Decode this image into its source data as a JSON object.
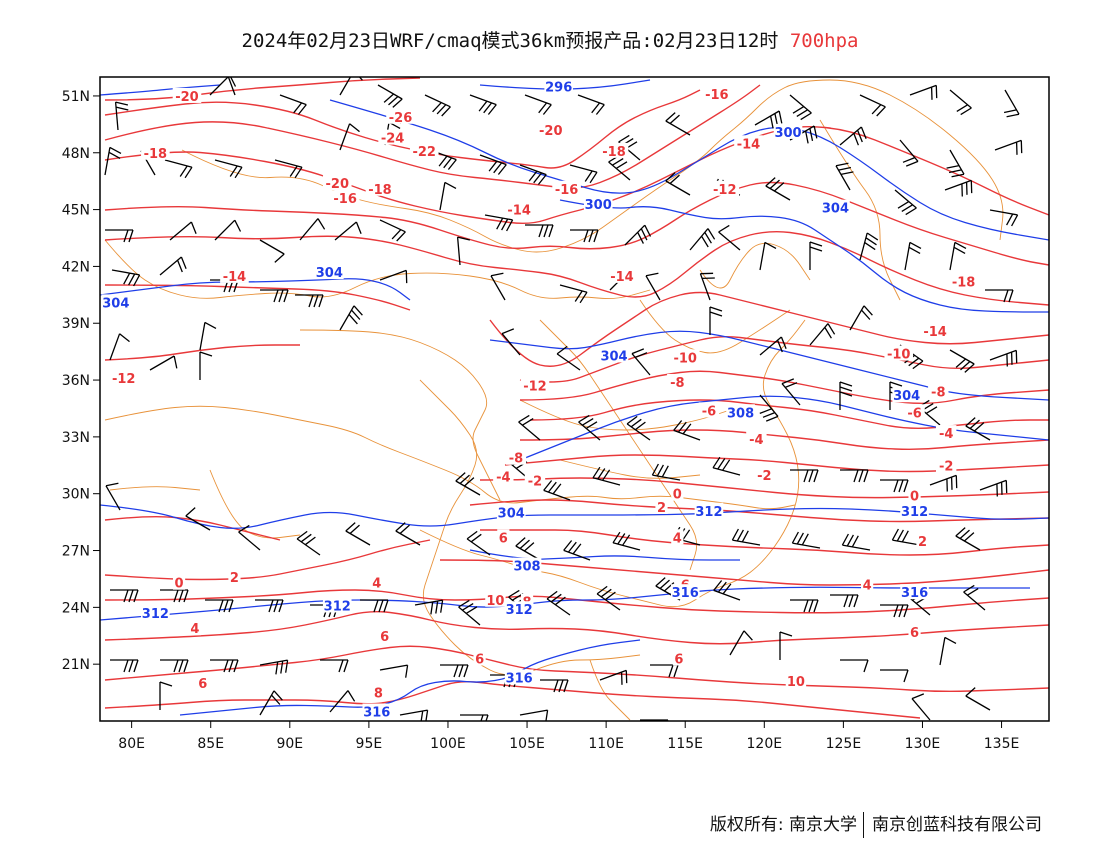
{
  "title": {
    "main": "2024年02月23日WRF/cmaq模式36km预报产品:02月23日12时",
    "level": "700hpa"
  },
  "colors": {
    "temperature": "#e8383a",
    "height": "#1f3ee8",
    "border": "#e8923a",
    "wind": "#000000"
  },
  "axes": {
    "lat_ticks": [
      "51N",
      "48N",
      "45N",
      "42N",
      "39N",
      "36N",
      "33N",
      "30N",
      "27N",
      "24N",
      "21N"
    ],
    "lon_ticks": [
      "80E",
      "85E",
      "90E",
      "95E",
      "100E",
      "105E",
      "110E",
      "115E",
      "120E",
      "125E",
      "130E",
      "135E"
    ]
  },
  "contour_labels": {
    "temperature": [
      {
        "text": "-20",
        "lon": 83.5,
        "lat": 51
      },
      {
        "text": "-18",
        "lon": 81.5,
        "lat": 48
      },
      {
        "text": "-12",
        "lon": 79.5,
        "lat": 36.1
      },
      {
        "text": "-14",
        "lon": 86.5,
        "lat": 41.5
      },
      {
        "text": "-26",
        "lon": 97,
        "lat": 49.9
      },
      {
        "text": "-24",
        "lon": 96.5,
        "lat": 48.8
      },
      {
        "text": "-22",
        "lon": 98.5,
        "lat": 48.1
      },
      {
        "text": "-20",
        "lon": 93,
        "lat": 46.4
      },
      {
        "text": "-18",
        "lon": 95.7,
        "lat": 46.1
      },
      {
        "text": "-16",
        "lon": 93.5,
        "lat": 45.6
      },
      {
        "text": "-14",
        "lon": 104.5,
        "lat": 45
      },
      {
        "text": "-20",
        "lon": 106.5,
        "lat": 49.2
      },
      {
        "text": "-18",
        "lon": 110.5,
        "lat": 48.1
      },
      {
        "text": "-16",
        "lon": 107.5,
        "lat": 46.1
      },
      {
        "text": "-16",
        "lon": 117,
        "lat": 51.1
      },
      {
        "text": "-14",
        "lon": 119,
        "lat": 48.5
      },
      {
        "text": "-12",
        "lon": 117.5,
        "lat": 46.1
      },
      {
        "text": "-14",
        "lon": 111,
        "lat": 41.5
      },
      {
        "text": "-10",
        "lon": 115,
        "lat": 37.2
      },
      {
        "text": "-12",
        "lon": 105.5,
        "lat": 35.7
      },
      {
        "text": "-8",
        "lon": 114.5,
        "lat": 35.9
      },
      {
        "text": "-6",
        "lon": 116.5,
        "lat": 34.4
      },
      {
        "text": "-4",
        "lon": 119.5,
        "lat": 32.9
      },
      {
        "text": "-2",
        "lon": 120,
        "lat": 31
      },
      {
        "text": "-8",
        "lon": 104.3,
        "lat": 31.9
      },
      {
        "text": "-4",
        "lon": 103.5,
        "lat": 30.9
      },
      {
        "text": "-2",
        "lon": 105.5,
        "lat": 30.7
      },
      {
        "text": "-18",
        "lon": 132.6,
        "lat": 41.2
      },
      {
        "text": "-14",
        "lon": 130.8,
        "lat": 38.6
      },
      {
        "text": "-10",
        "lon": 128.5,
        "lat": 37.4
      },
      {
        "text": "-8",
        "lon": 131,
        "lat": 35.4
      },
      {
        "text": "-6",
        "lon": 129.5,
        "lat": 34.3
      },
      {
        "text": "-4",
        "lon": 131.5,
        "lat": 33.2
      },
      {
        "text": "-2",
        "lon": 131.5,
        "lat": 31.5
      },
      {
        "text": "0",
        "lon": 114.5,
        "lat": 30
      },
      {
        "text": "0",
        "lon": 129.5,
        "lat": 29.9
      },
      {
        "text": "2",
        "lon": 113.5,
        "lat": 29.3
      },
      {
        "text": "2",
        "lon": 130,
        "lat": 27.5
      },
      {
        "text": "4",
        "lon": 114.5,
        "lat": 27.7
      },
      {
        "text": "4",
        "lon": 126.5,
        "lat": 25.2
      },
      {
        "text": "6",
        "lon": 103.5,
        "lat": 27.7
      },
      {
        "text": "6",
        "lon": 115,
        "lat": 25.2
      },
      {
        "text": "6",
        "lon": 129.5,
        "lat": 22.7
      },
      {
        "text": "6",
        "lon": 96,
        "lat": 22.5
      },
      {
        "text": "6",
        "lon": 102,
        "lat": 21.3
      },
      {
        "text": "6",
        "lon": 84.5,
        "lat": 20
      },
      {
        "text": "6",
        "lon": 114.6,
        "lat": 21.3
      },
      {
        "text": "8",
        "lon": 105,
        "lat": 24.3
      },
      {
        "text": "8",
        "lon": 95.6,
        "lat": 19.5
      },
      {
        "text": "10",
        "lon": 103,
        "lat": 24.4
      },
      {
        "text": "10",
        "lon": 122,
        "lat": 20.1
      },
      {
        "text": "0",
        "lon": 83,
        "lat": 25.3
      },
      {
        "text": "2",
        "lon": 86.5,
        "lat": 25.6
      },
      {
        "text": "4",
        "lon": 84,
        "lat": 22.9
      },
      {
        "text": "4",
        "lon": 95.5,
        "lat": 25.3
      }
    ],
    "height": [
      {
        "text": "296",
        "lon": 107,
        "lat": 51.5
      },
      {
        "text": "300",
        "lon": 121.5,
        "lat": 49.1
      },
      {
        "text": "300",
        "lon": 109.5,
        "lat": 45.3
      },
      {
        "text": "304",
        "lon": 124.5,
        "lat": 45.1
      },
      {
        "text": "304",
        "lon": 92.5,
        "lat": 41.7
      },
      {
        "text": "304",
        "lon": 79,
        "lat": 40.1
      },
      {
        "text": "304",
        "lon": 110.5,
        "lat": 37.3
      },
      {
        "text": "304",
        "lon": 129,
        "lat": 35.2
      },
      {
        "text": "308",
        "lon": 118.5,
        "lat": 34.3
      },
      {
        "text": "304",
        "lon": 104,
        "lat": 29
      },
      {
        "text": "312",
        "lon": 116.5,
        "lat": 29.1
      },
      {
        "text": "312",
        "lon": 129.5,
        "lat": 29.1
      },
      {
        "text": "308",
        "lon": 105,
        "lat": 26.2
      },
      {
        "text": "312",
        "lon": 104.5,
        "lat": 23.9
      },
      {
        "text": "312",
        "lon": 81.5,
        "lat": 23.7
      },
      {
        "text": "312",
        "lon": 93,
        "lat": 24.1
      },
      {
        "text": "316",
        "lon": 115,
        "lat": 24.8
      },
      {
        "text": "316",
        "lon": 129.5,
        "lat": 24.8
      },
      {
        "text": "316",
        "lon": 104.5,
        "lat": 20.3
      },
      {
        "text": "316",
        "lon": 95.5,
        "lat": 18.5
      }
    ]
  },
  "footer": {
    "left": "版权所有: 南京大学",
    "right": "南京创蓝科技有限公司"
  }
}
